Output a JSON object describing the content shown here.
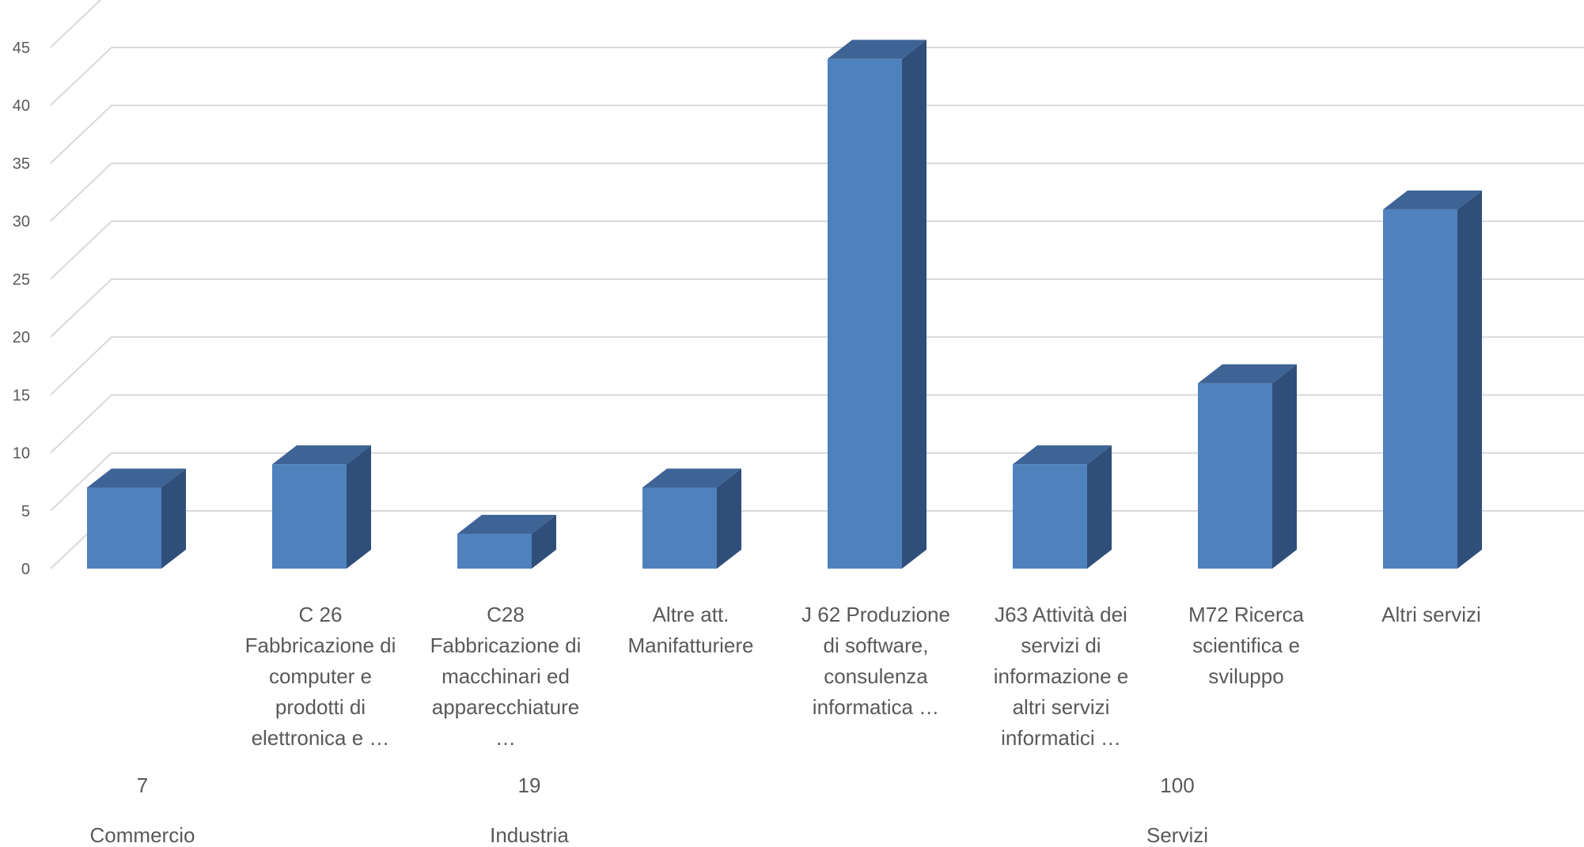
{
  "chart_data": {
    "type": "bar",
    "style": "3d-column",
    "categories": [
      "",
      "C 26 Fabbricazione di computer e prodotti di elettronica e …",
      "C28 Fabbricazione di macchinari ed apparecchiature …",
      "Altre att. Manifatturiere",
      "J 62 Produzione di software, consulenza informatica …",
      "J63 Attività dei servizi di informazione e altri servizi informatici …",
      "M72 Ricerca scientifica e sviluppo",
      "Altri servizi"
    ],
    "category_label_lines": [
      [],
      [
        "C 26",
        "Fabbricazione di",
        "computer e",
        "prodotti di",
        "elettronica e …"
      ],
      [
        "C28",
        "Fabbricazione di",
        "macchinari ed",
        "apparecchiature",
        "…"
      ],
      [
        "Altre att.",
        "Manifatturiere"
      ],
      [
        "J 62 Produzione",
        "di software,",
        "consulenza",
        "informatica …"
      ],
      [
        "J63 Attività dei",
        "servizi di",
        "informazione e",
        "altri servizi",
        "informatici …"
      ],
      [
        "M72 Ricerca",
        "scientifica e",
        "sviluppo"
      ],
      [
        "Altri servizi"
      ]
    ],
    "values": [
      7,
      9,
      3,
      7,
      44,
      9,
      16,
      31
    ],
    "groups": [
      {
        "name": "Commercio",
        "total": "7",
        "categories": [
          0
        ]
      },
      {
        "name": "Industria",
        "total": "19",
        "categories": [
          1,
          2,
          3
        ]
      },
      {
        "name": "Servizi",
        "total": "100",
        "categories": [
          4,
          5,
          6,
          7
        ]
      }
    ],
    "yticks": [
      "0",
      "5",
      "10",
      "15",
      "20",
      "25",
      "30",
      "35",
      "40",
      "45"
    ],
    "ylim": [
      0,
      50
    ],
    "title": "",
    "xlabel": "",
    "ylabel": "",
    "grid": true,
    "legend": "none",
    "colors": {
      "bar_front": "#4f81bd",
      "bar_side": "#2f4f7a",
      "bar_top": "#3e6495",
      "grid": "#d9d9d9",
      "text": "#595959"
    }
  }
}
